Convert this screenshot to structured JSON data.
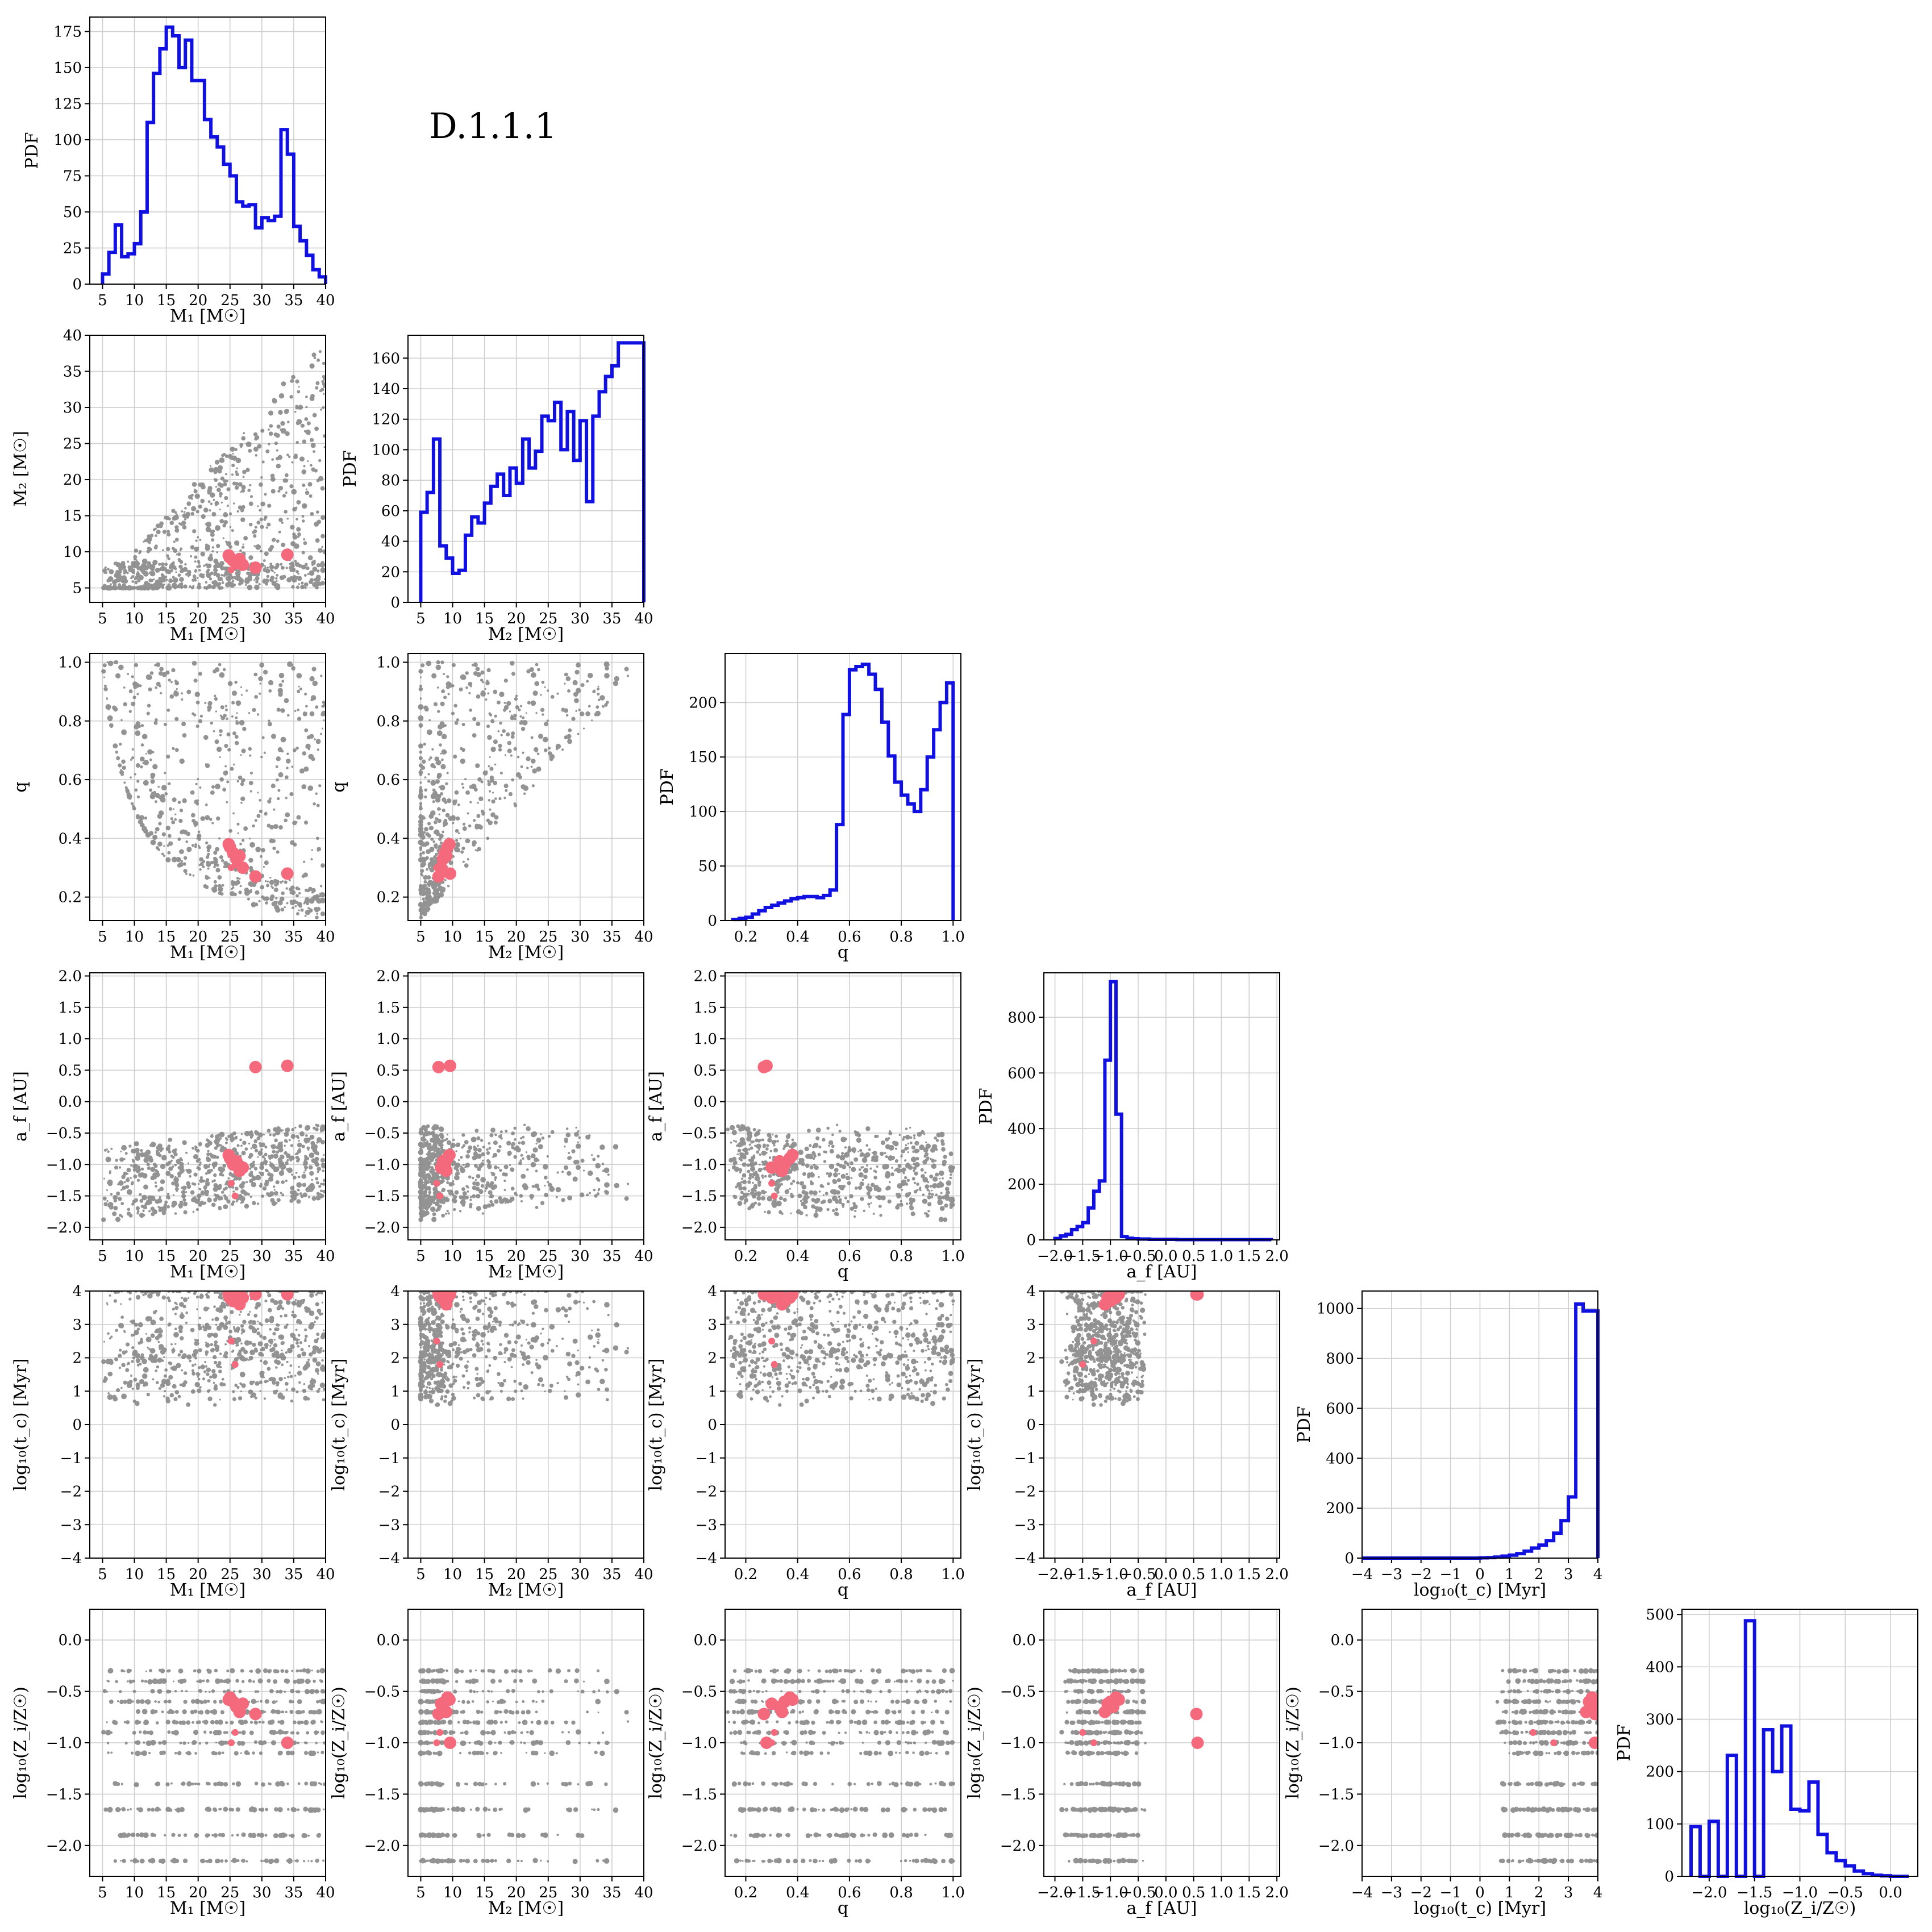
{
  "figure_label": "D.1.1.1",
  "colors": {
    "histogram": "#1010e0",
    "population": "#808080",
    "highlight": "#f5697c"
  },
  "variables": [
    {
      "key": "M1",
      "label": "M₁ [M☉]",
      "ticks": [
        5,
        10,
        15,
        20,
        25,
        30,
        35,
        40
      ],
      "tick_labels": [
        "5",
        "10",
        "15",
        "20",
        "25",
        "30",
        "35",
        "40"
      ],
      "lim": [
        3,
        40
      ]
    },
    {
      "key": "M2",
      "label": "M₂ [M☉]",
      "ticks": [
        5,
        10,
        15,
        20,
        25,
        30,
        35,
        40
      ],
      "tick_labels": [
        "5",
        "10",
        "15",
        "20",
        "25",
        "30",
        "35",
        "40"
      ],
      "lim": [
        3,
        40
      ]
    },
    {
      "key": "q",
      "label": "q",
      "ticks": [
        0.2,
        0.4,
        0.6,
        0.8,
        1.0
      ],
      "tick_labels": [
        "0.2",
        "0.4",
        "0.6",
        "0.8",
        "1.0"
      ],
      "lim": [
        0.12,
        1.03
      ]
    },
    {
      "key": "af",
      "label": "a_f [AU]",
      "ticks": [
        -2.0,
        -1.5,
        -1.0,
        -0.5,
        0.0,
        0.5,
        1.0,
        1.5,
        2.0
      ],
      "tick_labels": [
        "−2.0",
        "−1.5",
        "−1.0",
        "−0.5",
        "0.0",
        "0.5",
        "1.0",
        "1.5",
        "2.0"
      ],
      "lim": [
        -2.2,
        2.05
      ]
    },
    {
      "key": "tc",
      "label": "log₁₀(t_c) [Myr]",
      "ticks": [
        -4,
        -3,
        -2,
        -1,
        0,
        1,
        2,
        3,
        4
      ],
      "tick_labels": [
        "−4",
        "−3",
        "−2",
        "−1",
        "0",
        "1",
        "2",
        "3",
        "4"
      ],
      "lim": [
        -4,
        4
      ]
    },
    {
      "key": "Z",
      "label": "log₁₀(Z_i/Z☉)",
      "ticks": [
        -2.0,
        -1.5,
        -1.0,
        -0.5,
        0.0
      ],
      "tick_labels": [
        "−2.0",
        "−1.5",
        "−1.0",
        "−0.5",
        "0.0"
      ],
      "lim": [
        -2.3,
        0.3
      ]
    }
  ],
  "chart_data": {
    "type": "corner",
    "histogram_ylabel": "PDF",
    "histograms": [
      {
        "var": "M1",
        "ylim": [
          0,
          185
        ],
        "yticks": [
          0,
          25,
          50,
          75,
          100,
          125,
          150,
          175
        ],
        "ytick_labels": [
          "0",
          "25",
          "50",
          "75",
          "100",
          "125",
          "150",
          "175"
        ],
        "edges": [
          5,
          6,
          7,
          8,
          9,
          10,
          11,
          12,
          13,
          14,
          15,
          16,
          17,
          18,
          19,
          20,
          21,
          22,
          23,
          24,
          25,
          26,
          27,
          28,
          29,
          30,
          31,
          32,
          33,
          34,
          35,
          36,
          37,
          38,
          39,
          40
        ],
        "values": [
          7,
          22,
          41,
          19,
          21,
          28,
          50,
          112,
          146,
          163,
          178,
          172,
          150,
          169,
          141,
          141,
          114,
          102,
          95,
          83,
          75,
          57,
          54,
          55,
          39,
          46,
          44,
          47,
          107,
          90,
          40,
          30,
          20,
          10,
          5
        ]
      },
      {
        "var": "M2",
        "ylim": [
          0,
          175
        ],
        "yticks": [
          0,
          20,
          40,
          60,
          80,
          100,
          120,
          140,
          160
        ],
        "ytick_labels": [
          "0",
          "20",
          "40",
          "60",
          "80",
          "100",
          "120",
          "140",
          "160"
        ],
        "edges": [
          5,
          6,
          7,
          8,
          9,
          10,
          11,
          12,
          13,
          14,
          15,
          16,
          17,
          18,
          19,
          20,
          21,
          22,
          23,
          24,
          25,
          26,
          27,
          28,
          29,
          30,
          31,
          32,
          33,
          34,
          35,
          36,
          37,
          38,
          39,
          40
        ],
        "values": [
          59,
          72,
          107,
          37,
          29,
          19,
          21,
          44,
          56,
          52,
          65,
          76,
          84,
          70,
          88,
          78,
          107,
          88,
          99,
          122,
          119,
          131,
          100,
          125,
          93,
          119,
          66,
          122,
          138,
          148,
          155,
          170,
          170,
          170,
          170
        ]
      },
      {
        "var": "q",
        "ylim": [
          0,
          245
        ],
        "yticks": [
          0,
          50,
          100,
          150,
          200
        ],
        "ytick_labels": [
          "0",
          "50",
          "100",
          "150",
          "200"
        ],
        "edges": [
          0.15,
          0.175,
          0.2,
          0.225,
          0.25,
          0.275,
          0.3,
          0.325,
          0.35,
          0.375,
          0.4,
          0.425,
          0.45,
          0.475,
          0.5,
          0.525,
          0.55,
          0.575,
          0.6,
          0.625,
          0.65,
          0.675,
          0.7,
          0.725,
          0.75,
          0.775,
          0.8,
          0.825,
          0.85,
          0.875,
          0.9,
          0.925,
          0.95,
          0.975,
          1.0
        ],
        "values": [
          1,
          2,
          3,
          6,
          9,
          12,
          14,
          16,
          18,
          20,
          21,
          22,
          22,
          21,
          23,
          28,
          88,
          189,
          230,
          233,
          235,
          226,
          212,
          182,
          151,
          127,
          115,
          107,
          100,
          120,
          150,
          175,
          200,
          218
        ]
      },
      {
        "var": "af",
        "ylim": [
          0,
          960
        ],
        "yticks": [
          0,
          200,
          400,
          600,
          800
        ],
        "ytick_labels": [
          "0",
          "200",
          "400",
          "600",
          "800"
        ],
        "edges": [
          -2.0,
          -1.9,
          -1.8,
          -1.7,
          -1.6,
          -1.5,
          -1.4,
          -1.3,
          -1.2,
          -1.1,
          -1.0,
          -0.9,
          -0.8,
          -0.7,
          -0.6,
          -0.5,
          -0.4,
          -0.3,
          -0.2,
          -0.1,
          0.0,
          0.1,
          0.2,
          0.3,
          0.4,
          0.5,
          0.6,
          0.7,
          0.8,
          0.9,
          1.0,
          1.1,
          1.2,
          1.3,
          1.4,
          1.5,
          1.6,
          1.7,
          1.8,
          1.9
        ],
        "values": [
          5,
          14,
          20,
          37,
          48,
          62,
          115,
          175,
          212,
          646,
          928,
          452,
          12,
          6,
          4,
          3,
          3,
          2,
          2,
          2,
          2,
          2,
          1,
          1,
          1,
          1,
          1,
          1,
          1,
          1,
          1,
          1,
          1,
          1,
          1,
          1,
          1,
          1,
          1
        ]
      },
      {
        "var": "tc",
        "ylim": [
          0,
          1070
        ],
        "yticks": [
          0,
          200,
          400,
          600,
          800,
          1000
        ],
        "ytick_labels": [
          "0",
          "200",
          "400",
          "600",
          "800",
          "1000"
        ],
        "edges": [
          -4,
          -3.75,
          -3.5,
          -3.25,
          -3,
          -2.75,
          -2.5,
          -2.25,
          -2,
          -1.75,
          -1.5,
          -1.25,
          -1,
          -0.75,
          -0.5,
          -0.25,
          0,
          0.25,
          0.5,
          0.75,
          1,
          1.25,
          1.5,
          1.75,
          2,
          2.25,
          2.5,
          2.75,
          3,
          3.25,
          3.5,
          3.75,
          4
        ],
        "values": [
          0,
          0,
          0,
          0,
          0,
          0,
          0,
          0,
          0,
          0,
          0,
          0,
          0,
          0,
          0,
          0,
          1,
          2,
          4,
          8,
          12,
          18,
          28,
          40,
          52,
          70,
          100,
          150,
          245,
          1018,
          990,
          990
        ]
      },
      {
        "var": "Z",
        "ylim": [
          0,
          510
        ],
        "yticks": [
          0,
          100,
          200,
          300,
          400,
          500
        ],
        "ytick_labels": [
          "0",
          "100",
          "200",
          "300",
          "400",
          "500"
        ],
        "edges": [
          -2.2,
          -2.1,
          -2.0,
          -1.9,
          -1.8,
          -1.7,
          -1.6,
          -1.5,
          -1.4,
          -1.3,
          -1.2,
          -1.1,
          -1.0,
          -0.9,
          -0.8,
          -0.7,
          -0.6,
          -0.5,
          -0.4,
          -0.3,
          -0.2,
          -0.1,
          0.0,
          0.1,
          0.2
        ],
        "values": [
          95,
          0,
          105,
          0,
          231,
          0,
          488,
          0,
          280,
          200,
          287,
          128,
          125,
          180,
          80,
          45,
          30,
          20,
          10,
          5,
          2,
          1,
          0,
          0
        ]
      }
    ],
    "scatter_panels": [
      {
        "x": "M1",
        "y": "M2"
      },
      {
        "x": "M1",
        "y": "q"
      },
      {
        "x": "M2",
        "y": "q"
      },
      {
        "x": "M1",
        "y": "af"
      },
      {
        "x": "M2",
        "y": "af"
      },
      {
        "x": "q",
        "y": "af"
      },
      {
        "x": "M1",
        "y": "tc"
      },
      {
        "x": "M2",
        "y": "tc"
      },
      {
        "x": "q",
        "y": "tc"
      },
      {
        "x": "af",
        "y": "tc"
      },
      {
        "x": "M1",
        "y": "Z"
      },
      {
        "x": "M2",
        "y": "Z"
      },
      {
        "x": "q",
        "y": "Z"
      },
      {
        "x": "af",
        "y": "Z"
      },
      {
        "x": "tc",
        "y": "Z"
      }
    ],
    "highlight_points": [
      {
        "M1": 25.0,
        "M2": 9.2,
        "q": 0.37,
        "af": -0.9,
        "tc": 3.8,
        "Z": -0.56
      },
      {
        "M1": 25.5,
        "M2": 8.8,
        "q": 0.35,
        "af": -1.0,
        "tc": 3.7,
        "Z": -0.6
      },
      {
        "M1": 26.0,
        "M2": 8.5,
        "q": 0.33,
        "af": -0.95,
        "tc": 3.9,
        "Z": -0.65
      },
      {
        "M1": 26.5,
        "M2": 9.0,
        "q": 0.34,
        "af": -1.1,
        "tc": 3.6,
        "Z": -0.7
      },
      {
        "M1": 27.0,
        "M2": 8.2,
        "q": 0.3,
        "af": -1.05,
        "tc": 3.8,
        "Z": -0.62
      },
      {
        "M1": 24.8,
        "M2": 9.5,
        "q": 0.38,
        "af": -0.85,
        "tc": 3.9,
        "Z": -0.58
      },
      {
        "M1": 29.0,
        "M2": 7.8,
        "q": 0.27,
        "af": 0.55,
        "tc": 3.9,
        "Z": -0.72
      },
      {
        "M1": 34.0,
        "M2": 9.6,
        "q": 0.28,
        "af": 0.57,
        "tc": 3.9,
        "Z": -1.0
      },
      {
        "M1": 25.2,
        "M2": 7.5,
        "q": 0.3,
        "af": -1.3,
        "tc": 2.5,
        "Z": -1.0
      },
      {
        "M1": 25.8,
        "M2": 8.0,
        "q": 0.31,
        "af": -1.5,
        "tc": 1.8,
        "Z": -0.9
      }
    ]
  }
}
